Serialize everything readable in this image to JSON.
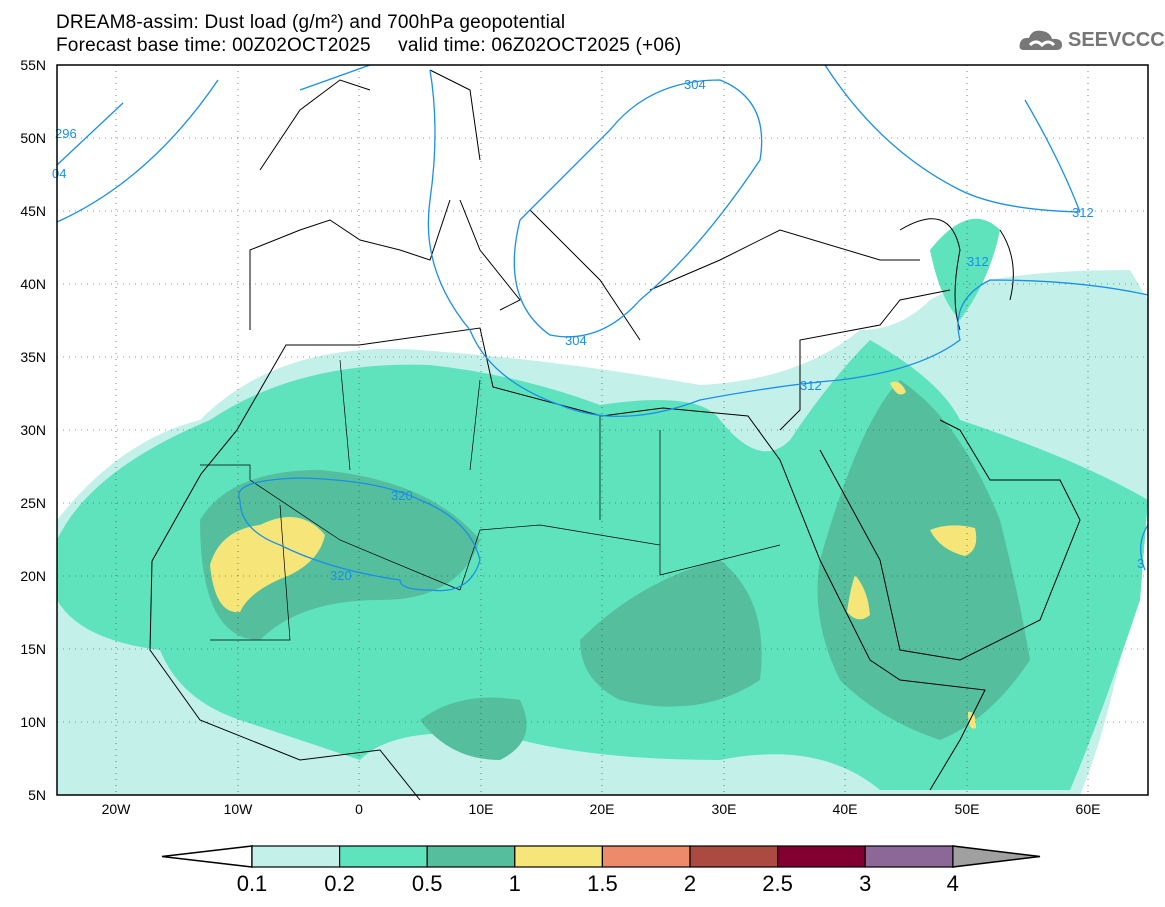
{
  "title": {
    "line1": "DREAM8-assim: Dust load (g/m²) and 700hPa geopotential",
    "line2": "Forecast base time: 00Z02OCT2025     valid time: 06Z02OCT2025 (+06)"
  },
  "logo": {
    "text": "SEEVCCC",
    "icon": "cloud-logo-icon"
  },
  "axes": {
    "lat_labels": [
      "55N",
      "50N",
      "45N",
      "40N",
      "35N",
      "30N",
      "25N",
      "20N",
      "15N",
      "10N",
      "5N"
    ],
    "lon_labels": [
      "20W",
      "10W",
      "0",
      "10E",
      "20E",
      "30E",
      "40E",
      "50E",
      "60E"
    ]
  },
  "contour_labels": [
    "296",
    "04",
    "304",
    "304",
    "312",
    "312",
    "312",
    "320",
    "320",
    "3"
  ],
  "colorbar": {
    "ticks": [
      "0.1",
      "0.2",
      "0.5",
      "1",
      "1.5",
      "2",
      "2.5",
      "3",
      "4"
    ],
    "colors": [
      "#c3f1ea",
      "#5ee3bd",
      "#55bf9d",
      "#f6e67a",
      "#ec8a69",
      "#ab4a40",
      "#820030",
      "#8c6898"
    ],
    "under": "#ffffff",
    "over": "#a0a0a0"
  }
}
